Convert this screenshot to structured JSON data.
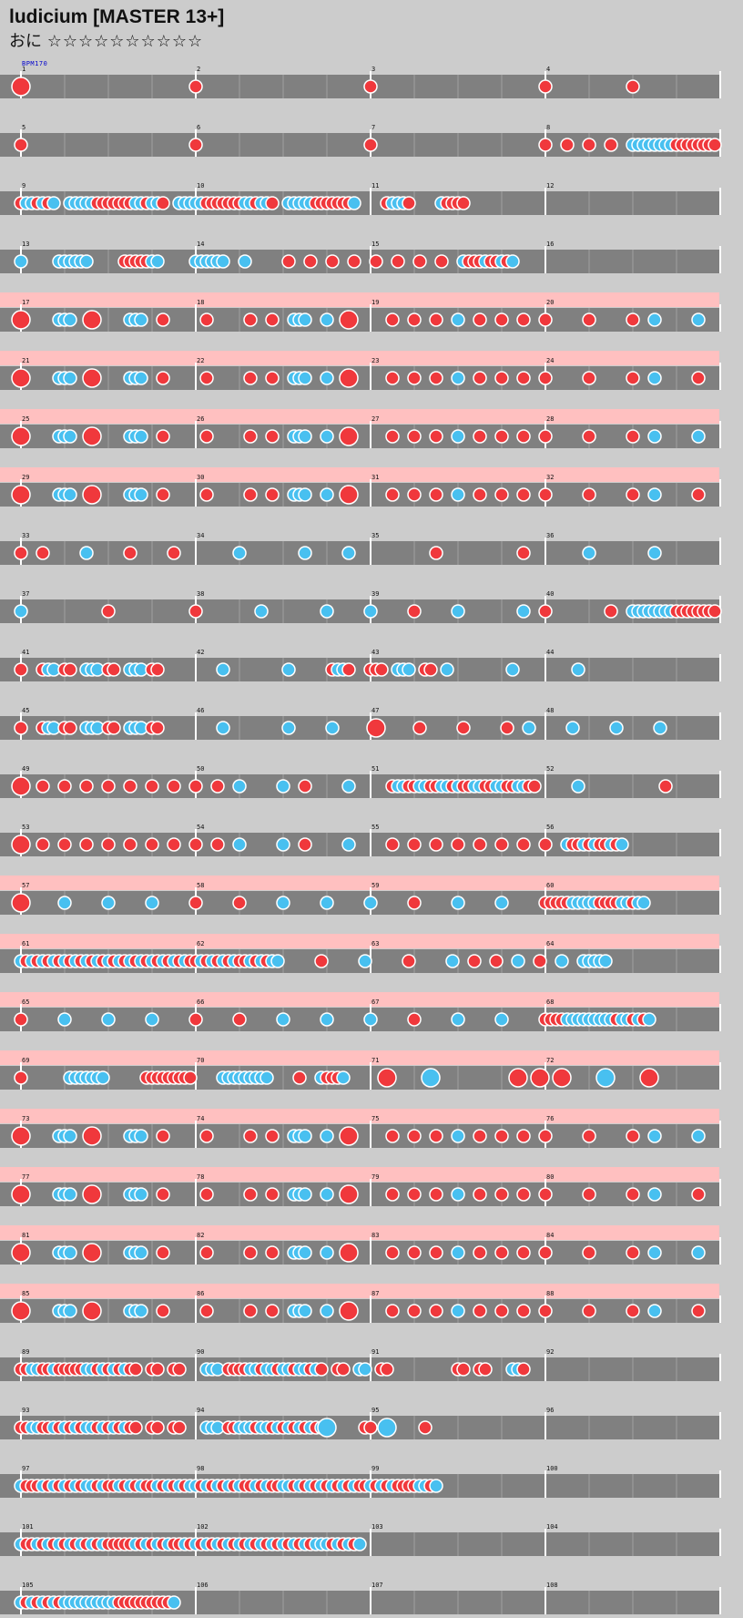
{
  "chart": {
    "title": "ludicium [MASTER 13+]",
    "difficulty_label": "おに",
    "stars": "☆☆☆☆☆☆☆☆☆☆",
    "bpm_label": "BPM170"
  },
  "colors": {
    "background": "#cccccc",
    "lane": "#808080",
    "gogo_band": "#ffc0c0",
    "don_note": "#f0383c",
    "ka_note": "#48c0f0",
    "note_border": "#ffffff",
    "measure_line": "#ffffff",
    "beat_line": "#a0a0a0"
  },
  "measures_per_row": 4,
  "measure_numbers": [
    "1",
    "2",
    "3",
    "4",
    "5",
    "6",
    "7",
    "8",
    "9",
    "10",
    "11",
    "12",
    "13",
    "14",
    "15",
    "16",
    "17",
    "18",
    "19",
    "20",
    "21",
    "22",
    "23",
    "24",
    "25",
    "26",
    "27",
    "28",
    "29",
    "30",
    "31",
    "32",
    "33",
    "34",
    "35",
    "36",
    "37",
    "38",
    "39",
    "40",
    "41",
    "42",
    "43",
    "44",
    "45",
    "46",
    "47",
    "48",
    "49",
    "50",
    "51",
    "52",
    "53",
    "54",
    "55",
    "56",
    "57",
    "58",
    "59",
    "60",
    "61",
    "62",
    "63",
    "64",
    "65",
    "66",
    "67",
    "68",
    "69",
    "70",
    "71",
    "72",
    "73",
    "74",
    "75",
    "76",
    "77",
    "78",
    "79",
    "80",
    "81",
    "82",
    "83",
    "84",
    "85",
    "86",
    "87",
    "88",
    "89",
    "90",
    "91",
    "92",
    "93",
    "94",
    "95",
    "96",
    "97",
    "98",
    "99",
    "100",
    "101",
    "102",
    "103",
    "104",
    "105",
    "106",
    "107",
    "108"
  ],
  "rows": [
    {
      "gogo": false,
      "notes": "D;;;;;;;;;;;;;;;;;;;;;;;;;;;;;;;d;;;;;;;;;;;;;;;;;;;;;;;;;;;;;;;d;;;;;;;;;;;;;;;;;;;;;;;;;;;;;;;d;;;;;;;;;;;;;;;d;;;;;;;;;;;;;;;"
    },
    {
      "gogo": false,
      "notes": "d;;;;;;;;;;;;;;;;;;;;;;;;;;;;;;;d;;;;;;;;;;;;;;;;;;;;;;;;;;;;;;;d;;;;;;;;;;;;;;;;;;;;;;;;;;;;;;;d;;;d;;;d;;;d;;;kkkkkkkkdddddddd"
    },
    {
      "gogo": false,
      "notes": "dkkdkdk;;kkkkkdddddddkkdkkd;;kkkkkdddddddkkdkkd;;kkkkkdddddddk;;;;;dkkkd;;;;;kdddd"
    },
    {
      "gogo": false,
      "notes": "k;;;;;;kkkkkk;;;;;;dddddkk;;;;;;kkkkkk;;;k;;;;;;;d;;;d;;;d;;;d;;;d;;;d;;;d;;;d;;;kdddkddkdk"
    },
    {
      "gogo": true,
      "notes": "D;;;;;;kkk;;;D;;;;;;kkk;;;d;;;;;;;d;;;;;;;d;;;d;;;kkk;;;k;;;D;;;;;;;d;;;d;;;d;;;k;;;d;;;d;;;d;;;d;;;;;;;d;;;;;;;d;;;k;;;;;;;k;;;;;;;"
    },
    {
      "gogo": true,
      "notes": "D;;;;;;kkk;;;D;;;;;;kkk;;;d;;;;;;;d;;;;;;;d;;;d;;;kkk;;;k;;;D;;;;;;;d;;;d;;;d;;;k;;;d;;;d;;;d;;;d;;;;;;;d;;;;;;;d;;;k;;;;;;;d;;;;;;;"
    },
    {
      "gogo": true,
      "notes": "D;;;;;;kkk;;;D;;;;;;kkk;;;d;;;;;;;d;;;;;;;d;;;d;;;kkk;;;k;;;D;;;;;;;d;;;d;;;d;;;k;;;d;;;d;;;d;;;d;;;;;;;d;;;;;;;d;;;k;;;;;;;k;;;;;;;"
    },
    {
      "gogo": true,
      "notes": "D;;;;;;kkk;;;D;;;;;;kkk;;;d;;;;;;;d;;;;;;;d;;;d;;;kkk;;;k;;;D;;;;;;;d;;;d;;;d;;;k;;;d;;;d;;;d;;;d;;;;;;;d;;;;;;;d;;;k;;;;;;;d;;;;;;;"
    },
    {
      "gogo": false,
      "notes": "d;;;d;;;;;;;k;;;;;;;d;;;;;;;d;;;;;;;;;;;k;;;;;;;;;;;k;;;;;;;k;;;;;;;;;;;;;;;d;;;;;;;;;;;;;;;d;;;;;;;;;;;k;;;;;;;;;;;k;;;;;;;"
    },
    {
      "gogo": false,
      "notes": "k;;;;;;;;;;;;;;;d;;;;;;;;;;;;;;;d;;;;;;;;;;;k;;;;;;;;;;;k;;;;;;;k;;;;;;;d;;;;;;;k;;;;;;;;;;;k;;;d;;;;;;;;;;;d;;;kkkkkkkkdddddddd"
    },
    {
      "gogo": false,
      "notes": "d;;;dkk;dd;;kkk;dd;;kkk;dd;;;;;;;;;;;k;;;;;;;;;;;k;;;;;;;dkkd;;;ddd;;kkk;;dd;;k;;;;;;;;;;;k;;;;;;;;;;;k;;;;;;;"
    },
    {
      "gogo": false,
      "notes": "d;;;dkk;dd;;kkk;dd;;kkk;dd;;;;;;;;;;;k;;;;;;;;;;;k;;;;;;;k;;;;;;;D;;;;;;;d;;;;;;;d;;;;;;;d;;;k;;;;;;;k;;;;;;;k;;;;;;;k;;;;;;;"
    },
    {
      "gogo": false,
      "notes": "D;;;d;;;d;;;d;;;d;;;d;;;d;;;d;;;d;;;d;;;k;;;;;;;k;;;d;;;;;;;k;;;;;;;dkkddkkddkkdkddkkddkkddkkdd;;;;;;;k;;;;;;;;;;;;;;;d;;;;;;;"
    },
    {
      "gogo": false,
      "notes": "D;;;d;;;d;;;d;;;d;;;d;;;d;;;d;;;d;;;d;;;k;;;;;;;k;;;d;;;;;;;k;;;;;;;d;;;d;;;d;;;d;;;d;;;d;;;d;;;d;;;kddkdkddkdk"
    },
    {
      "gogo": true,
      "notes": "D;;;;;;;k;;;;;;;k;;;;;;;k;;;;;;;d;;;;;;;d;;;;;;;k;;;;;;;k;;;;;;;k;;;;;;;d;;;;;;;k;;;;;;;k;;;;;;;dddddkkkkkddddkkdkk"
    },
    {
      "gogo": true,
      "notes": "kdkdkdkdkdkdkdkdkdkdkdkdkdkdkdkddkdkdkdkddkdkdkk;;;;;;;d;;;;;;;k;;;;;;;d;;;;;;;k;;;d;;;d;;;k;;;d;;;k;;;kkkkk"
    },
    {
      "gogo": true,
      "notes": "d;;;;;;;k;;;;;;;k;;;;;;;k;;;;;;;d;;;;;;;d;;;;;;;k;;;;;;;k;;;;;;;k;;;;;;;d;;;;;;;k;;;;;;;k;;;;;;;ddddkkkkkkkkkdkkdkdk"
    },
    {
      "gogo": true,
      "notes": "d;;;;;;;;kkkkkkk;;;;;;;ddddddddd;;;;;kkkkkkkkk;;;;;d;;;kdddk;;;;;;;D;;;;;;;K;;;;;;;;;;;;;;;D;;;D;;;D;;;;;;;K;;;;;;;D;;;;;;;"
    },
    {
      "gogo": true,
      "notes": "D;;;;;;kkk;;;D;;;;;;kkk;;;d;;;;;;;d;;;;;;;d;;;d;;;kkk;;;k;;;D;;;;;;;d;;;d;;;d;;;k;;;d;;;d;;;d;;;d;;;;;;;d;;;;;;;d;;;k;;;;;;;k;;;;;;;"
    },
    {
      "gogo": true,
      "notes": "D;;;;;;kkk;;;D;;;;;;kkk;;;d;;;;;;;d;;;;;;;d;;;d;;;kkk;;;k;;;D;;;;;;;d;;;d;;;d;;;k;;;d;;;d;;;d;;;d;;;;;;;d;;;;;;;d;;;k;;;;;;;d;;;;;;;"
    },
    {
      "gogo": true,
      "notes": "D;;;;;;kkk;;;D;;;;;;kkk;;;d;;;;;;;d;;;;;;;d;;;d;;;kkk;;;k;;;D;;;;;;;d;;;d;;;d;;;k;;;d;;;d;;;d;;;d;;;;;;;d;;;;;;;d;;;k;;;;;;;k;;;;;;;"
    },
    {
      "gogo": true,
      "notes": "D;;;;;;kkk;;;D;;;;;;kkk;;;d;;;;;;;d;;;;;;;d;;;d;;;kkk;;;k;;;D;;;;;;;d;;;d;;;d;;;k;;;d;;;d;;;d;;;d;;;;;;;d;;;;;;;d;;;k;;;;;;;d;;;;;;;"
    },
    {
      "gogo": false,
      "notes": "ddkkddkdddddkkdkdkdkdd;;dd;;dd;;;;kkk;ddddkkdkkdkkdkkdkd;;dd;;kk;;dd;;;;;;;;;;;;dd;;dd;;;;kkd;"
    },
    {
      "gogo": false,
      "notes": "ddkkddkdkdkdkkdkdkdkdd;;dd;;dd;;;;kkk;ddkkkdkkdkdkdkdkdkK;;;;;;dd;;K;;;;;;d;;;;;;;;;;;;;"
    },
    {
      "gogo": false,
      "notes": "kdddkdkdkdkdkkdkddkdkdkddkdkdkdkkdkdkdkdkddkdkddkkdkdkdkdkdkdkddkdkdkddddkkdk"
    },
    {
      "gogo": false,
      "notes": "kddkdkdkdkdkdkdkdddddkdkdkdkddkdkdkdkdkdkdkdkdkdkdkdkdkkkdkdkdk"
    },
    {
      "gogo": false,
      "notes": "kdkdkdkdkkkkkkkkkkddddddddddk;;;;;;;;;;;;;;;;;;;;;;;;;;;;;;;;;"
    }
  ]
}
